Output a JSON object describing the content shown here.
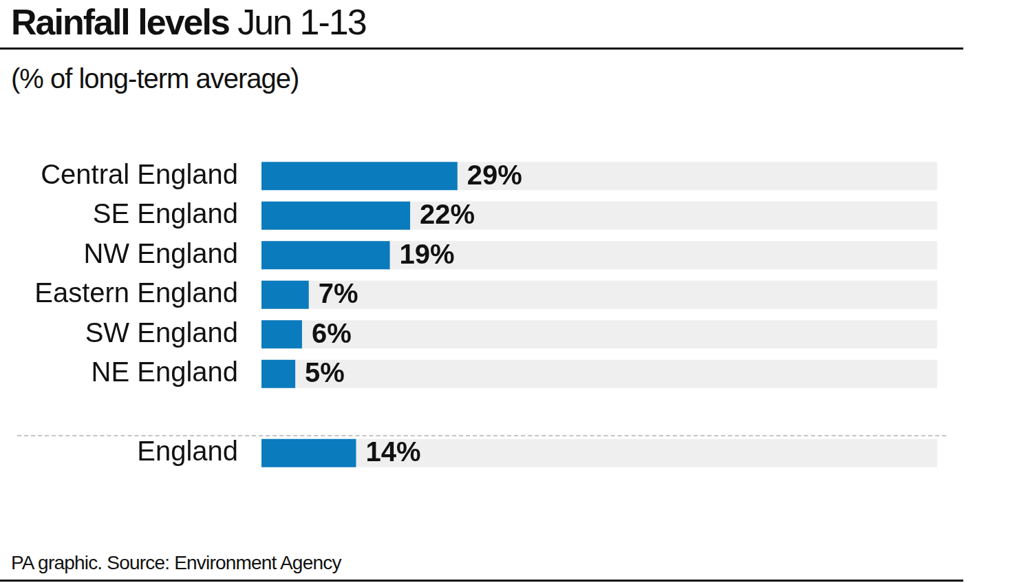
{
  "chart_data": {
    "type": "bar",
    "orientation": "horizontal",
    "title": "Rainfall levels",
    "subtitle": "Jun 1-13",
    "xlabel": "(% of long-term average)",
    "source": "PA graphic. Source: Environment Agency",
    "categories": [
      "Central England",
      "SE England",
      "NW England",
      "Eastern England",
      "SW England",
      "NE England",
      "England"
    ],
    "values": [
      29,
      22,
      19,
      7,
      6,
      5,
      14
    ],
    "value_labels": [
      "29%",
      "22%",
      "19%",
      "7%",
      "6%",
      "5%",
      "14%"
    ],
    "color": "#0a7bbd",
    "xlim": [
      0,
      100
    ],
    "xticks": [
      0,
      100
    ],
    "grid": false,
    "tick_labels": "y",
    "data_labels": true
  }
}
